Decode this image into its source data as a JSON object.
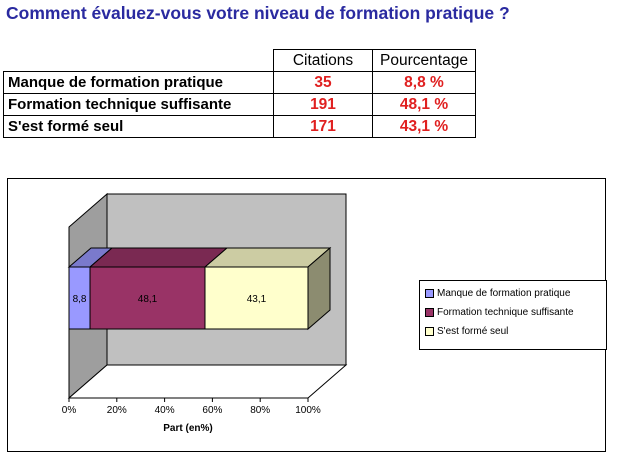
{
  "title": "Comment évaluez-vous votre niveau de formation pratique ?",
  "table": {
    "headers": [
      "Citations",
      "Pourcentage"
    ],
    "rows": [
      {
        "label": "Manque de formation pratique",
        "citations": "35",
        "pourcentage": "8,8 %"
      },
      {
        "label": "Formation technique suffisante",
        "citations": "191",
        "pourcentage": "48,1 %"
      },
      {
        "label": "S'est formé seul",
        "citations": "171",
        "pourcentage": "43,1 %"
      }
    ]
  },
  "chart_data": {
    "type": "bar",
    "orientation": "horizontal",
    "stacked": true,
    "three_d": true,
    "categories": [
      ""
    ],
    "series": [
      {
        "name": "Manque de formation pratique",
        "values": [
          8.8
        ],
        "label": "8,8",
        "color": "#9999ff"
      },
      {
        "name": "Formation technique suffisante",
        "values": [
          48.1
        ],
        "label": "48,1",
        "color": "#993366"
      },
      {
        "name": "S'est formé seul",
        "values": [
          43.1
        ],
        "label": "43,1",
        "color": "#ffffcc"
      }
    ],
    "xlabel": "Part (en%)",
    "ylabel": "",
    "xlim": [
      0,
      100
    ],
    "xticks": [
      "0%",
      "20%",
      "40%",
      "60%",
      "80%",
      "100%"
    ],
    "legend_position": "right",
    "wall_color": "#c0c0c0",
    "grid": false
  }
}
